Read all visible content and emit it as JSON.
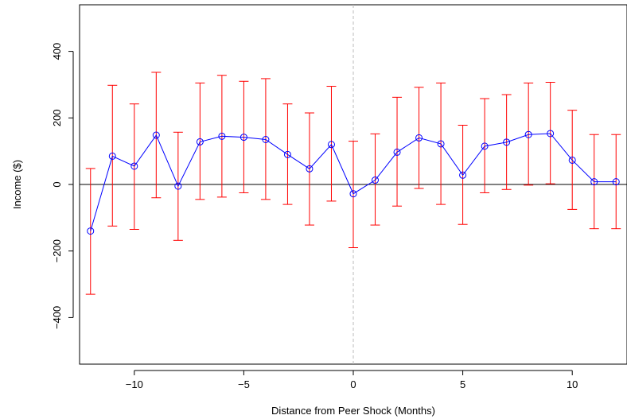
{
  "chart_data": {
    "type": "line",
    "xlabel": "Distance from Peer Shock (Months)",
    "ylabel": "Income ($)",
    "xlim": [
      -12.5,
      12.5
    ],
    "ylim": [
      -540,
      540
    ],
    "xticks": [
      -10,
      -5,
      0,
      5,
      10
    ],
    "xtick_labels": [
      "−10",
      "−5",
      "0",
      "5",
      "10"
    ],
    "yticks": [
      -400,
      -200,
      0,
      200,
      400
    ],
    "ytick_labels": [
      "−400",
      "−200",
      "0",
      "200",
      "400"
    ],
    "grid": false,
    "reference_lines": [
      {
        "orientation": "horizontal",
        "value": 0,
        "style": "solid",
        "color": "#000000"
      },
      {
        "orientation": "vertical",
        "value": 0,
        "style": "dashed",
        "color": "#bbbbbb"
      }
    ],
    "series": [
      {
        "x": [
          -12,
          -11,
          -10,
          -9,
          -8,
          -7,
          -6,
          -5,
          -4,
          -3,
          -2,
          -1,
          0,
          1,
          2,
          3,
          4,
          5,
          6,
          7,
          8,
          9,
          10,
          11,
          12
        ],
        "y": [
          -140,
          85,
          55,
          148,
          -5,
          128,
          145,
          142,
          135,
          90,
          47,
          120,
          -28,
          13,
          97,
          140,
          122,
          28,
          115,
          127,
          150,
          153,
          73,
          8,
          8
        ],
        "y_lower": [
          -330,
          -125,
          -135,
          -40,
          -168,
          -45,
          -38,
          -25,
          -45,
          -60,
          -122,
          -50,
          -190,
          -122,
          -65,
          -12,
          -60,
          -120,
          -25,
          -15,
          -2,
          2,
          -75,
          -133,
          -133
        ],
        "y_upper": [
          48,
          298,
          242,
          337,
          157,
          305,
          328,
          310,
          318,
          242,
          215,
          295,
          130,
          152,
          262,
          292,
          305,
          178,
          258,
          270,
          305,
          307,
          223,
          150,
          150
        ]
      }
    ],
    "colors": {
      "line": "#0000ff",
      "marker": "#0000ff",
      "errorbar": "#ff0000",
      "zero_line": "#000000",
      "vline": "#bbbbbb"
    }
  }
}
